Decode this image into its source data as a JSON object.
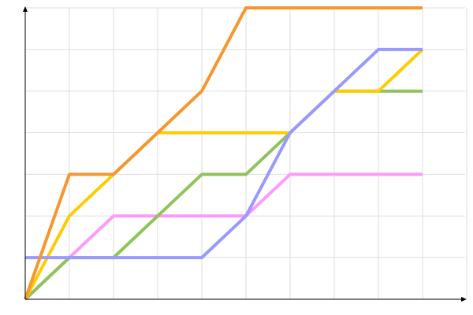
{
  "chart_data": {
    "type": "line",
    "title": "",
    "xlabel": "",
    "ylabel": "",
    "xlim": [
      0,
      10
    ],
    "ylim": [
      0,
      7
    ],
    "grid": true,
    "legend": "none",
    "series": [
      {
        "color": "#ff99ff",
        "x": [
          0,
          2,
          5,
          6,
          9
        ],
        "y": [
          0,
          2,
          2,
          3,
          3
        ]
      },
      {
        "color": "#8fc45a",
        "x": [
          0,
          1,
          2,
          4,
          5,
          6,
          7,
          9
        ],
        "y": [
          0,
          1,
          1,
          3,
          3,
          4,
          5,
          5
        ]
      },
      {
        "color": "#ffcc00",
        "x": [
          0,
          1,
          3,
          6,
          7,
          8,
          9
        ],
        "y": [
          0,
          2,
          4,
          4,
          5,
          5,
          6
        ]
      },
      {
        "color": "#9999ff",
        "x": [
          0,
          4,
          5,
          6,
          8,
          9
        ],
        "y": [
          1,
          1,
          2,
          4,
          6,
          6
        ]
      },
      {
        "color": "#f7962f",
        "x": [
          0,
          1,
          2,
          4,
          5,
          9
        ],
        "y": [
          0,
          3,
          3,
          5,
          7,
          7
        ]
      }
    ]
  }
}
